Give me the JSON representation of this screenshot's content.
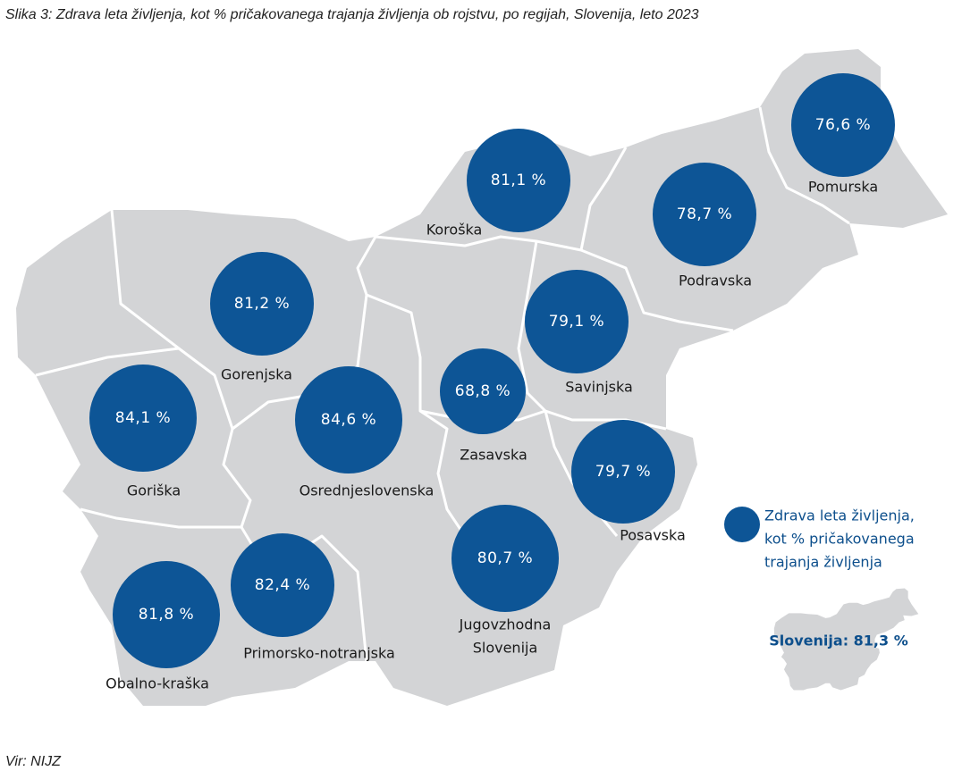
{
  "title": "Slika 3: Zdrava leta življenja, kot % pričakovanega trajanja življenja ob rojstvu, po regijah, Slovenija, leto 2023",
  "regions": [
    {
      "name": [
        "Pomurska"
      ],
      "value": "76,6 %"
    },
    {
      "name": [
        "Koroška"
      ],
      "value": "81,1 %"
    },
    {
      "name": [
        "Podravska"
      ],
      "value": "78,7 %"
    },
    {
      "name": [
        "Gorenjska"
      ],
      "value": "81,2 %"
    },
    {
      "name": [
        "Savinjska"
      ],
      "value": "79,1 %"
    },
    {
      "name": [
        "Zasavska"
      ],
      "value": "68,8 %"
    },
    {
      "name": [
        "Goriška"
      ],
      "value": "84,1 %"
    },
    {
      "name": [
        "Osrednjeslovenska"
      ],
      "value": "84,6 %"
    },
    {
      "name": [
        "Posavska"
      ],
      "value": "79,7 %"
    },
    {
      "name": [
        "Jugovzhodna",
        "Slovenija"
      ],
      "value": "80,7 %"
    },
    {
      "name": [
        "Primorsko-notranjska"
      ],
      "value": "82,4 %"
    },
    {
      "name": [
        "Obalno-kraška"
      ],
      "value": "81,8 %"
    }
  ],
  "legend": [
    "Zdrava leta življenja,",
    "kot % pričakovanega",
    "trajanja življenja"
  ],
  "national": "Slovenija: 81,3 %",
  "source": "Vir: NIJZ"
}
